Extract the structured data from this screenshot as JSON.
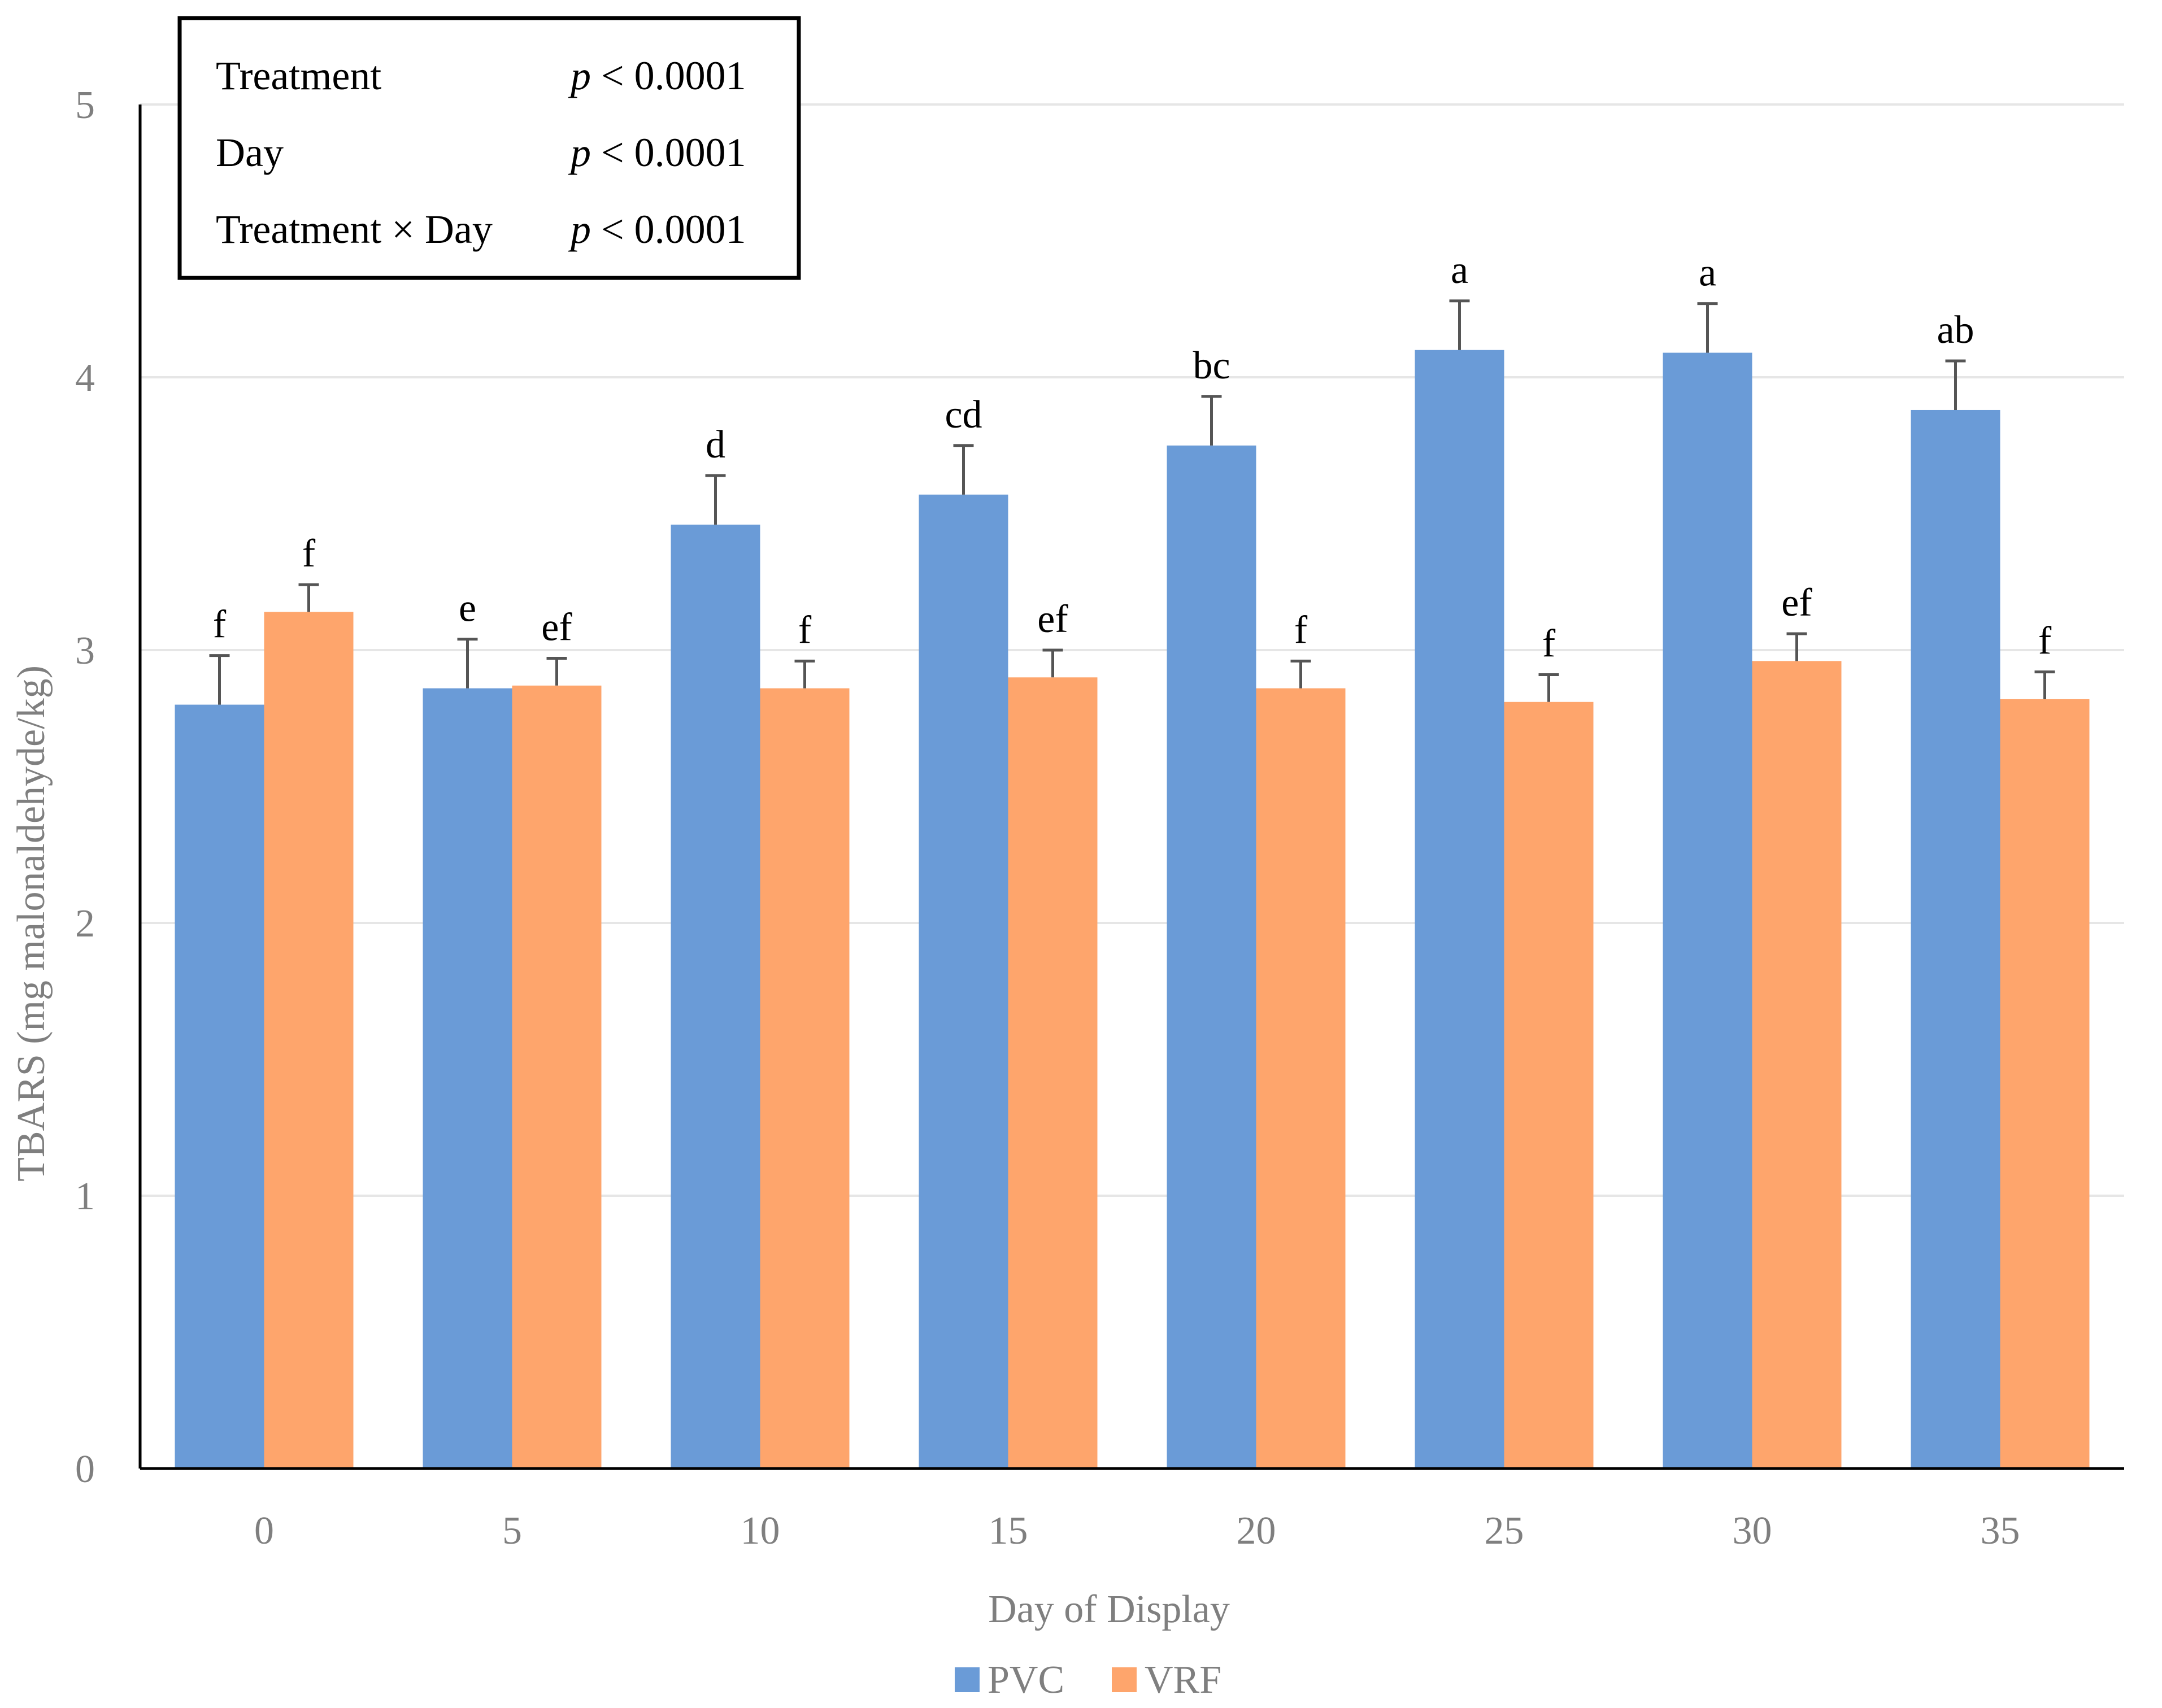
{
  "chart_data": {
    "type": "bar",
    "title": "",
    "xlabel": "Day of Display",
    "ylabel": "TBARS (mg malonaldehyde/kg)",
    "ylim": [
      0,
      5
    ],
    "yticks": [
      "0",
      "1",
      "2",
      "3",
      "4",
      "5"
    ],
    "categories": [
      "0",
      "5",
      "10",
      "15",
      "20",
      "25",
      "30",
      "35"
    ],
    "grid": true,
    "legend_position": "bottom",
    "series": [
      {
        "name": "PVC",
        "color": "#6a9bd7",
        "values": [
          2.8,
          2.86,
          3.46,
          3.57,
          3.75,
          4.1,
          4.09,
          3.88
        ],
        "errors": [
          0.18,
          0.18,
          0.18,
          0.18,
          0.18,
          0.18,
          0.18,
          0.18
        ],
        "letters": [
          "f",
          "e",
          "d",
          "cd",
          "bc",
          "a",
          "a",
          "ab"
        ]
      },
      {
        "name": "VRF",
        "color": "#fea56c",
        "values": [
          3.14,
          2.87,
          2.86,
          2.9,
          2.86,
          2.81,
          2.96,
          2.82
        ],
        "errors": [
          0.1,
          0.1,
          0.1,
          0.1,
          0.1,
          0.1,
          0.1,
          0.1
        ],
        "letters": [
          "f",
          "ef",
          "f",
          "ef",
          "f",
          "f",
          "ef",
          "f"
        ]
      }
    ],
    "stats_box": [
      {
        "label": "Treatment",
        "p_symbol": "p",
        "p_value": " < 0.0001"
      },
      {
        "label": "Day",
        "p_symbol": "p",
        "p_value": " < 0.0001"
      },
      {
        "label": "Treatment × Day",
        "p_symbol": "p",
        "p_value": " < 0.0001"
      }
    ]
  }
}
